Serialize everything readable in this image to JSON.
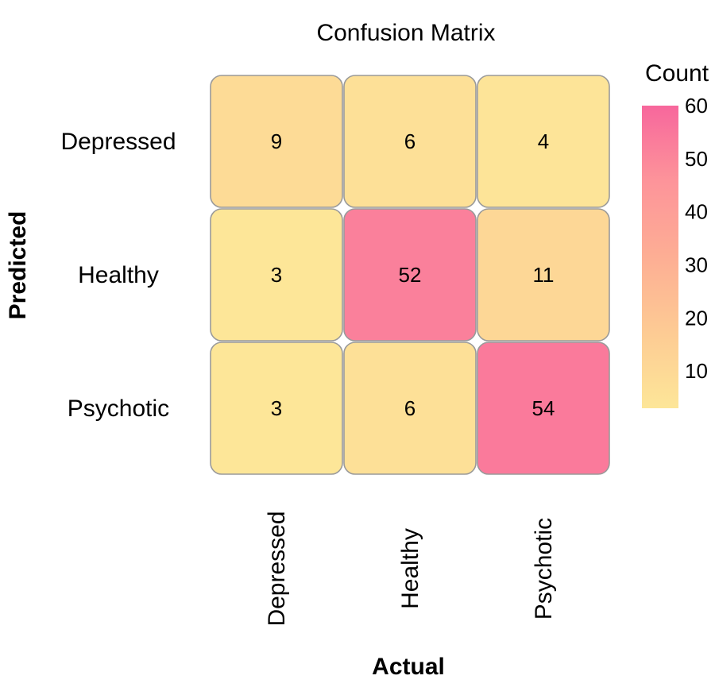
{
  "chart_data": {
    "type": "heatmap",
    "title": "Confusion Matrix",
    "xlabel": "Actual",
    "ylabel": "Predicted",
    "x_categories": [
      "Depressed",
      "Healthy",
      "Psychotic"
    ],
    "y_categories": [
      "Depressed",
      "Healthy",
      "Psychotic"
    ],
    "values": [
      [
        9,
        6,
        4
      ],
      [
        3,
        52,
        11
      ],
      [
        3,
        6,
        54
      ]
    ],
    "colorbar": {
      "title": "Count",
      "ticks": [
        10,
        20,
        30,
        40,
        50,
        60
      ],
      "range": [
        3,
        60
      ],
      "colors": [
        "#fde698",
        "#fdcb94",
        "#fdae94",
        "#fd949a",
        "#f7679c"
      ]
    }
  }
}
